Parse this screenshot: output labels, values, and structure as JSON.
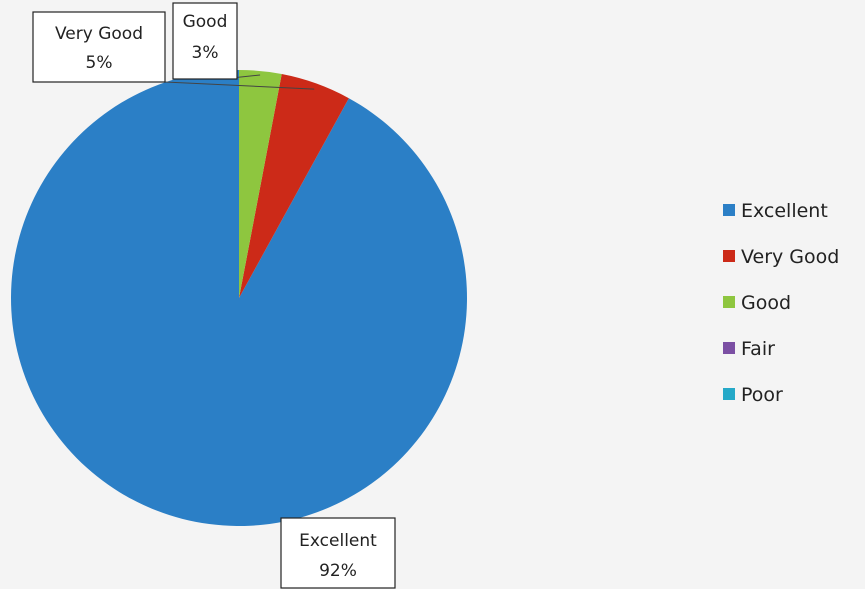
{
  "chart_data": {
    "type": "pie",
    "title": "",
    "categories": [
      "Excellent",
      "Very Good",
      "Good",
      "Fair",
      "Poor"
    ],
    "values": [
      92,
      5,
      3,
      0,
      0
    ],
    "data_labels": [
      {
        "category": "Very Good",
        "percent": "5%"
      },
      {
        "category": "Good",
        "percent": "3%"
      },
      {
        "category": "Excellent",
        "percent": "92%"
      }
    ],
    "colors": [
      "#2b7fc6",
      "#cc2a18",
      "#8ec63f",
      "#7b4fa3",
      "#25a9c8"
    ],
    "legend": {
      "position": "right",
      "entries": [
        "Excellent",
        "Very Good",
        "Good",
        "Fair",
        "Poor"
      ]
    }
  }
}
